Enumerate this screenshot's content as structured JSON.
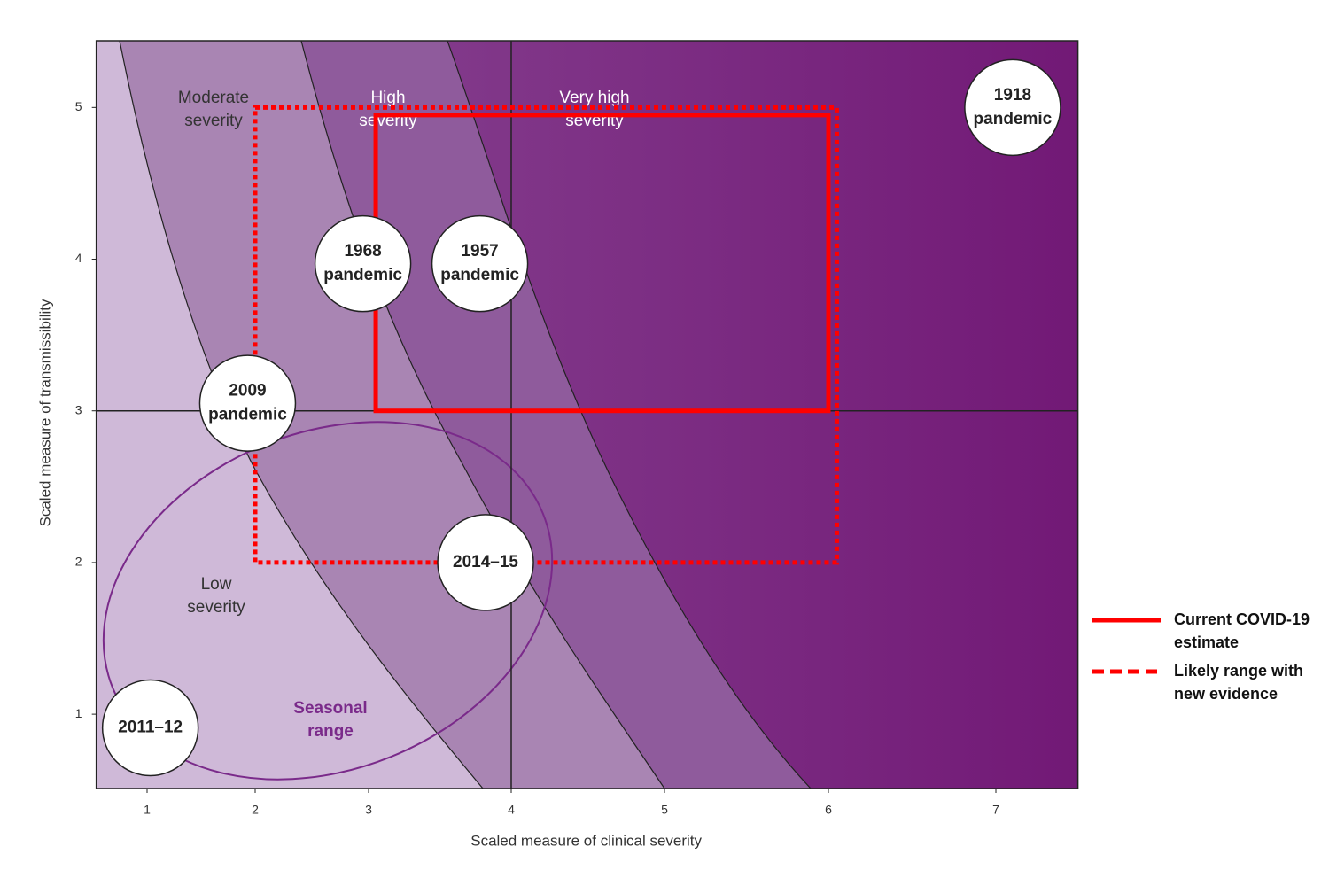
{
  "chart_data": {
    "type": "scatter",
    "x_label": "Scaled measure of clinical severity",
    "y_label": "Scaled measure of transmissibility",
    "xlim": [
      0.53,
      7.49
    ],
    "ylim": [
      0.51,
      5.44
    ],
    "xticks": [
      1,
      2,
      3,
      4,
      5,
      6,
      7
    ],
    "yticks": [
      1,
      2,
      3,
      4,
      5
    ],
    "reference_lines": [
      {
        "axis": "x",
        "value": 4
      },
      {
        "axis": "y",
        "value": 3
      }
    ],
    "region_labels": [
      {
        "lines": [
          "Moderate",
          "severity"
        ]
      },
      {
        "lines": [
          "High",
          "severity"
        ]
      },
      {
        "lines": [
          "Very high",
          "severity"
        ]
      },
      {
        "lines": [
          "Low",
          "severity"
        ]
      },
      {
        "lines": [
          "Seasonal",
          "range"
        ]
      }
    ],
    "points": [
      {
        "lines": [
          "1918",
          "pandemic"
        ],
        "x": 7.1,
        "y": 5.0
      },
      {
        "lines": [
          "1968",
          "pandemic"
        ],
        "x": 2.95,
        "y": 3.97
      },
      {
        "lines": [
          "1957",
          "pandemic"
        ],
        "x": 3.78,
        "y": 3.97
      },
      {
        "lines": [
          "2009",
          "pandemic"
        ],
        "x": 1.93,
        "y": 3.05
      },
      {
        "lines": [
          "2014–15"
        ],
        "x": 3.82,
        "y": 2.0
      },
      {
        "lines": [
          "2011–12"
        ],
        "x": 1.03,
        "y": 0.91
      }
    ],
    "series": [
      {
        "name": "Current COVID-19 estimate",
        "color": "#ff0000",
        "style": "solid",
        "x": [
          3.05,
          6.0
        ],
        "y": [
          3.0,
          4.95
        ]
      },
      {
        "name": "Likely range with new evidence",
        "color": "#ff0000",
        "style": "dotted",
        "x": [
          2.0,
          6.05
        ],
        "y": [
          2.0,
          5.0
        ]
      }
    ]
  }
}
